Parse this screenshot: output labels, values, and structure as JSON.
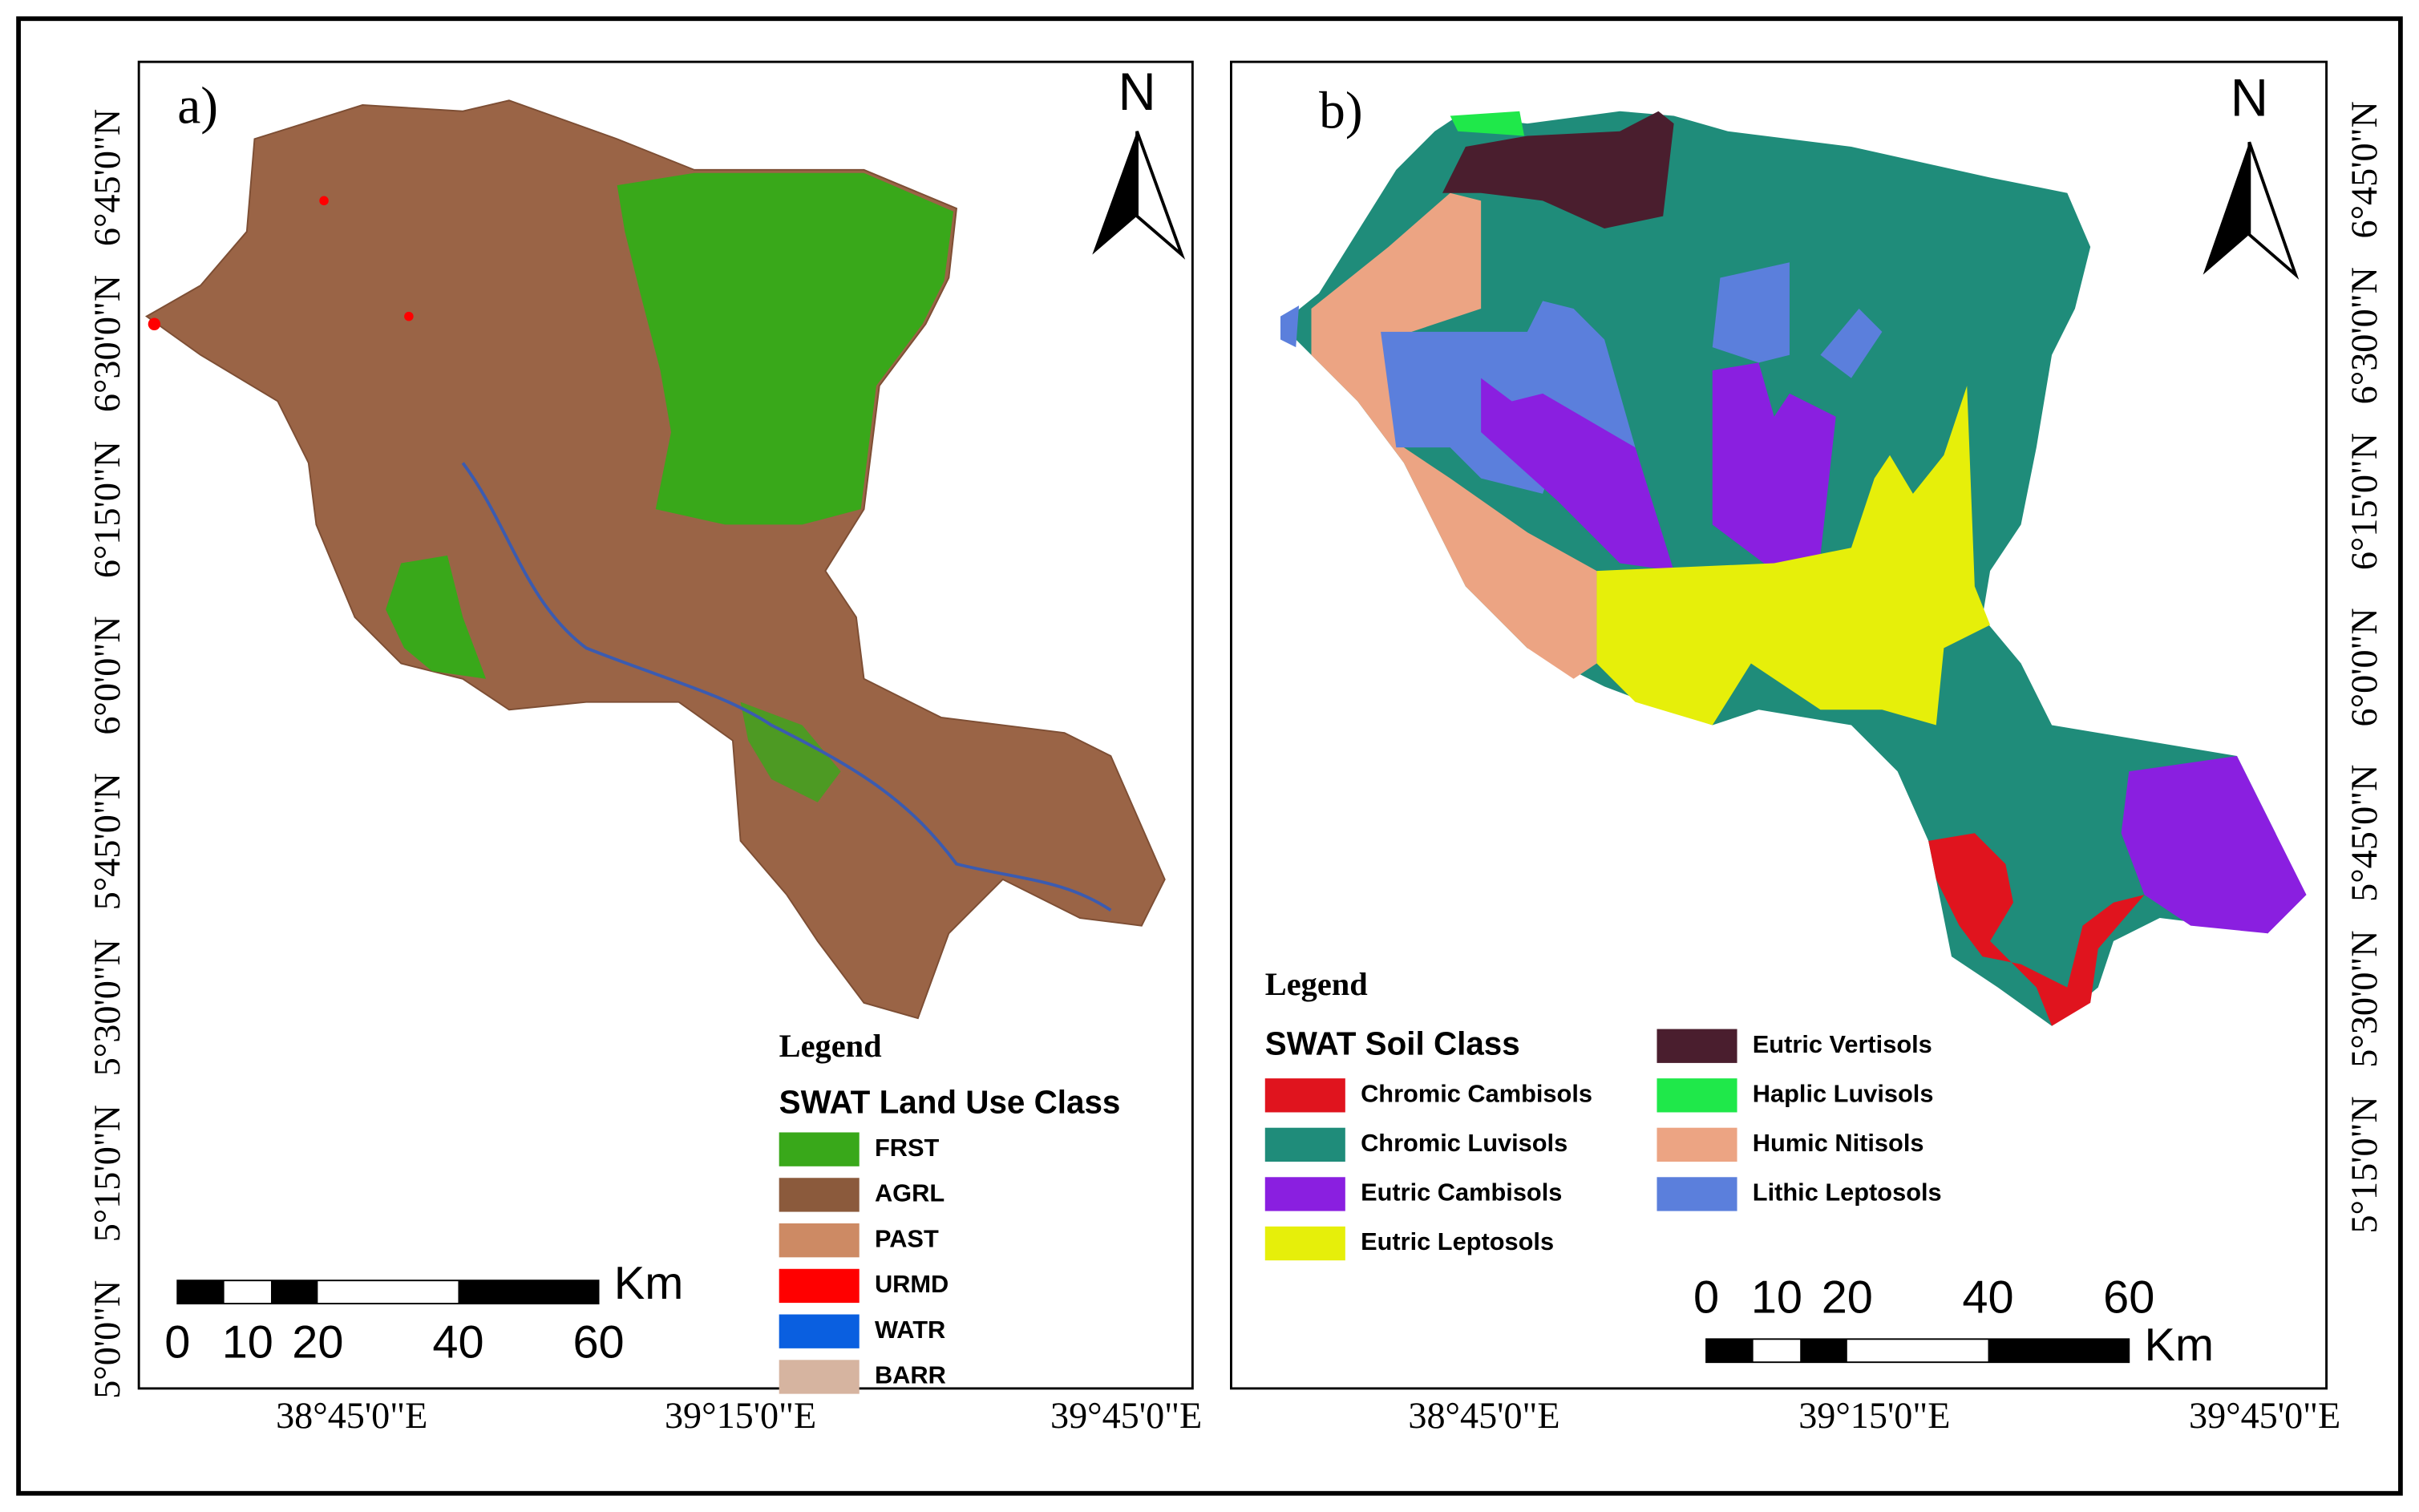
{
  "panels": [
    {
      "label": "a)",
      "north": "N",
      "lat_labels": [
        "6°45'0\"N",
        "6°30'0\"N",
        "6°15'0\"N",
        "6°0'0\"N",
        "5°45'0\"N",
        "5°30'0\"N",
        "5°15'0\"N",
        "5°0'0\"N"
      ],
      "lon_labels": [
        "38°45'0\"E",
        "39°15'0\"E",
        "39°45'0\"E"
      ],
      "legend": {
        "title": "Legend",
        "heading": "SWAT Land Use Class",
        "items": [
          {
            "name": "FRST",
            "color": "#39a81a"
          },
          {
            "name": "AGRL",
            "color": "#8b5a3c"
          },
          {
            "name": "PAST",
            "color": "#cd8a64"
          },
          {
            "name": "URMD",
            "color": "#ff0000"
          },
          {
            "name": "WATR",
            "color": "#0a5fe0"
          },
          {
            "name": "BARR",
            "color": "#d6b4a0"
          }
        ]
      },
      "scale": {
        "ticks": [
          0,
          10,
          20,
          40,
          60
        ],
        "unit": "Km"
      }
    },
    {
      "label": "b)",
      "north": "N",
      "lat_labels": [
        "6°45'0\"N",
        "6°30'0\"N",
        "6°15'0\"N",
        "6°0'0\"N",
        "5°45'0\"N",
        "5°30'0\"N",
        "5°15'0\"N"
      ],
      "lon_labels": [
        "38°45'0\"E",
        "39°15'0\"E",
        "39°45'0\"E"
      ],
      "legend": {
        "title": "Legend",
        "heading": "SWAT Soil Class",
        "items": [
          {
            "name": "Chromic Cambisols",
            "color": "#e0141e"
          },
          {
            "name": "Chromic Luvisols",
            "color": "#1f8c7a"
          },
          {
            "name": "Eutric Cambisols",
            "color": "#8a1fe0"
          },
          {
            "name": "Eutric Leptosols",
            "color": "#e6ef0a"
          },
          {
            "name": "Eutric Vertisols",
            "color": "#4a1e2e"
          },
          {
            "name": "Haplic Luvisols",
            "color": "#1fe84a"
          },
          {
            "name": "Humic Nitisols",
            "color": "#eca483"
          },
          {
            "name": "Lithic Leptosols",
            "color": "#5b7fdc"
          }
        ]
      },
      "scale": {
        "ticks": [
          0,
          10,
          20,
          40,
          60
        ],
        "unit": "Km"
      }
    }
  ]
}
